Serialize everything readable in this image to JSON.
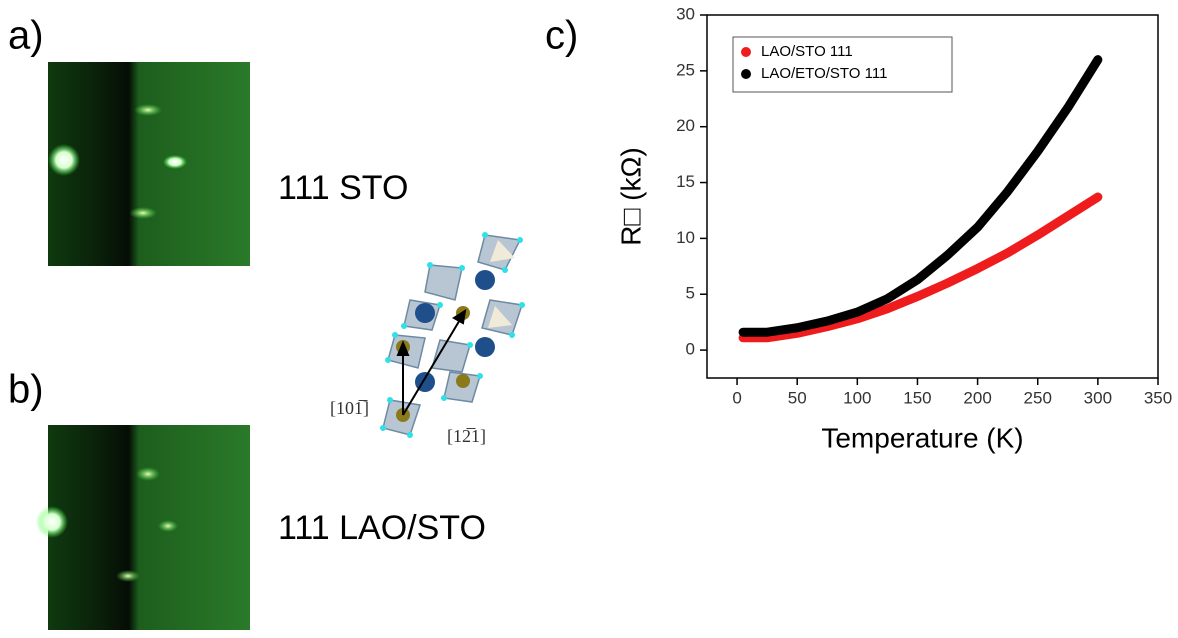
{
  "panels": {
    "a": "a)",
    "b": "b)",
    "c": "c)"
  },
  "samples": {
    "top": "111 STO",
    "bottom": "111 LAO/STO"
  },
  "directions": {
    "vertical": "[101̅]",
    "diagonal": "[12̅1]"
  },
  "chart_data": {
    "type": "line",
    "x_label": "Temperature (K)",
    "y_label": "R□ (kΩ)",
    "x": [
      5,
      25,
      50,
      75,
      100,
      125,
      150,
      175,
      200,
      225,
      250,
      275,
      300
    ],
    "series": [
      {
        "name": "LAO/STO 111",
        "color": "#ee1c1c",
        "values": [
          1.1,
          1.1,
          1.5,
          2.1,
          2.8,
          3.7,
          4.8,
          6.0,
          7.3,
          8.7,
          10.3,
          12.0,
          13.7
        ]
      },
      {
        "name": "LAO/ETO/STO 111",
        "color": "#000000",
        "values": [
          1.6,
          1.6,
          2.0,
          2.6,
          3.4,
          4.6,
          6.3,
          8.5,
          11.0,
          14.2,
          17.8,
          21.7,
          26
        ]
      }
    ],
    "xlim": [
      -25,
      350
    ],
    "xticks": [
      0,
      50,
      100,
      150,
      200,
      250,
      300,
      350
    ],
    "ylim": [
      -2.5,
      30
    ],
    "yticks": [
      0,
      5,
      10,
      15,
      20,
      25,
      30
    ],
    "legend": "upper left"
  }
}
